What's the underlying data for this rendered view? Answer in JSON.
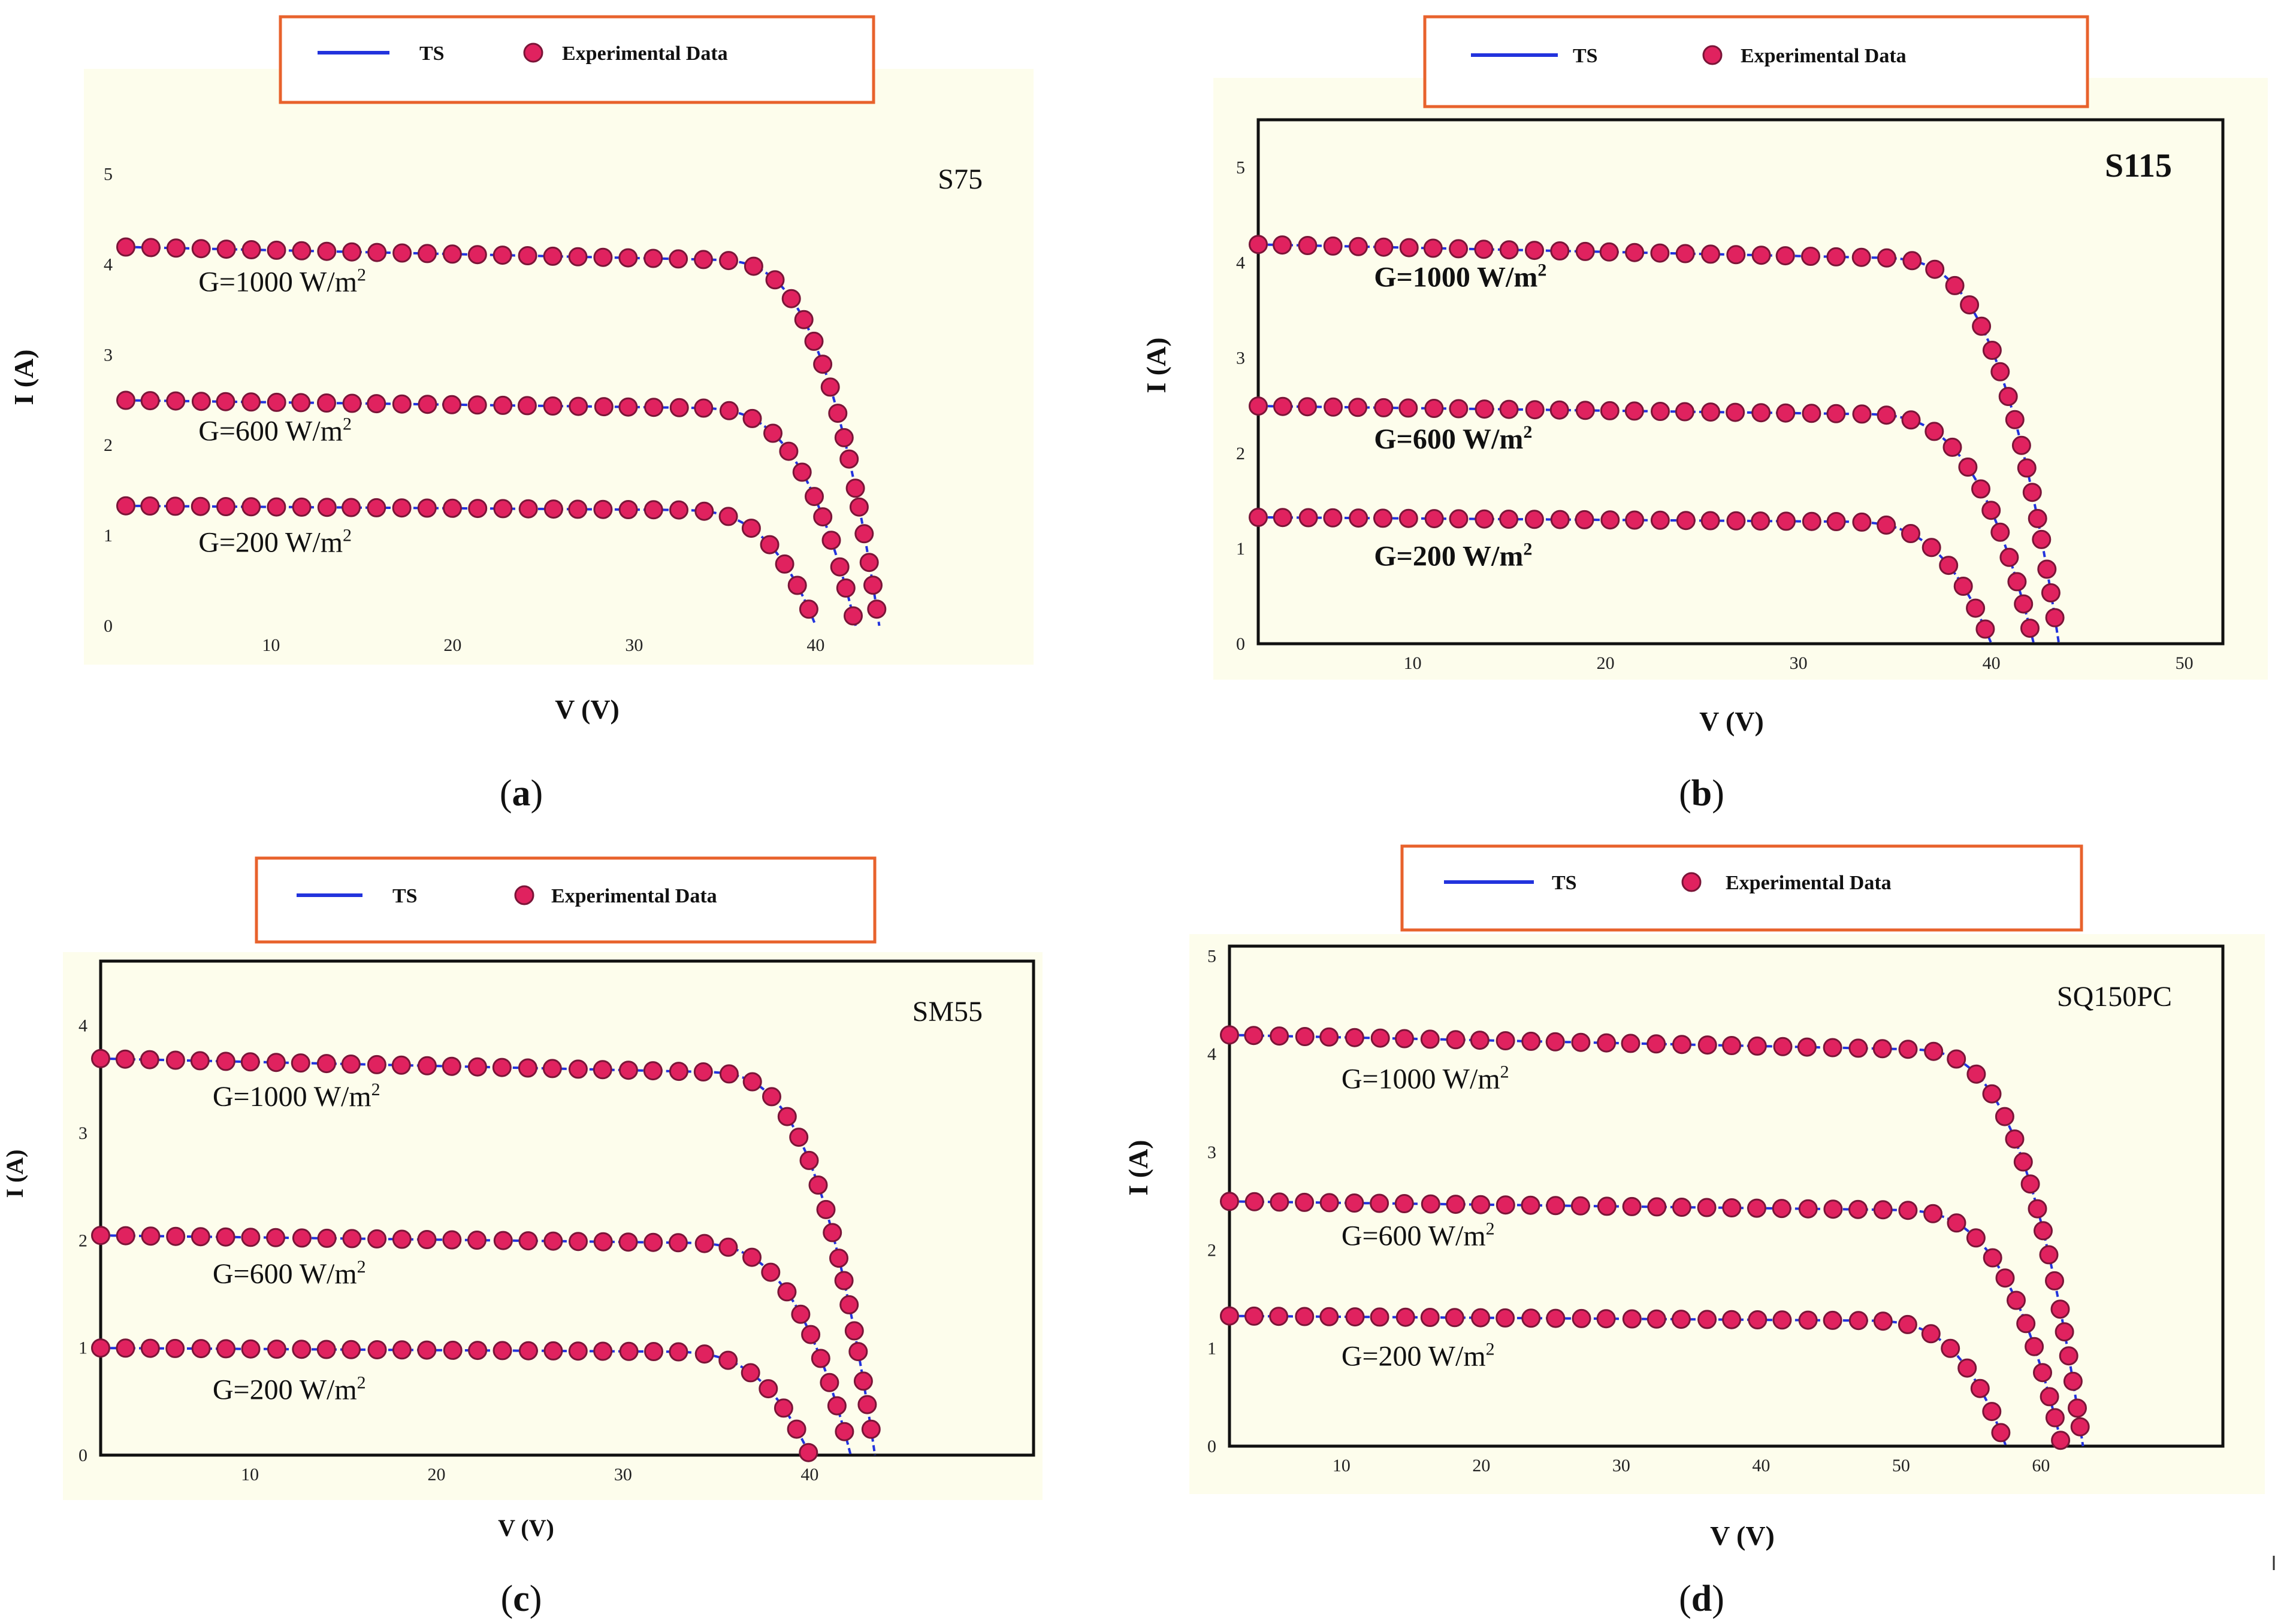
{
  "legend": {
    "line_label": "TS",
    "marker_label": "Experimental Data"
  },
  "colors": {
    "line": "#2233dd",
    "marker": "#e0225f",
    "marker_edge": "#7a1538",
    "panel_bg": "#fdfdec",
    "legend_border": "#e8622c",
    "axis": "#111111"
  },
  "chart_data": [
    {
      "type": "line",
      "panel": "(a)",
      "model": "S75",
      "xlabel": "V (V)",
      "ylabel": "I (A)",
      "xlim": [
        2,
        52
      ],
      "ylim": [
        0,
        5.5
      ],
      "xticks": [
        10,
        20,
        30,
        40
      ],
      "yticks": [
        0,
        1,
        2,
        3,
        4,
        5
      ],
      "series": [
        {
          "name": "G=1000 W/m2",
          "isc": 4.2,
          "voc": 43.5,
          "knee": 34,
          "a": 2.2,
          "b": 2,
          "label_y": 3.7,
          "label_x": 6
        },
        {
          "name": "G=600 W/m2",
          "isc": 2.5,
          "voc": 42.2,
          "knee": 33,
          "a": 2.3,
          "b": 2,
          "label_y": 2.05,
          "label_x": 6
        },
        {
          "name": "G=200 W/m2",
          "isc": 1.33,
          "voc": 40.0,
          "knee": 32,
          "a": 2.4,
          "b": 2,
          "label_y": 0.82,
          "label_x": 6
        }
      ]
    },
    {
      "type": "line",
      "panel": "(b)",
      "model": "S115",
      "xlabel": "V (V)",
      "ylabel": "I (A)",
      "xlim": [
        2,
        52
      ],
      "ylim": [
        0,
        5.5
      ],
      "xticks": [
        10,
        20,
        30,
        40,
        50
      ],
      "yticks": [
        0,
        1,
        2,
        3,
        4,
        5
      ],
      "series": [
        {
          "name": "G=1000 W/m2",
          "isc": 4.2,
          "voc": 43.5,
          "knee": 34,
          "a": 2.2,
          "b": 2,
          "label_y": 3.75,
          "label_x": 8
        },
        {
          "name": "G=600 W/m2",
          "isc": 2.5,
          "voc": 42.2,
          "knee": 33,
          "a": 2.3,
          "b": 2,
          "label_y": 2.05,
          "label_x": 8
        },
        {
          "name": "G=200 W/m2",
          "isc": 1.33,
          "voc": 40.0,
          "knee": 32,
          "a": 2.4,
          "b": 2,
          "label_y": 0.82,
          "label_x": 8
        }
      ]
    },
    {
      "type": "line",
      "panel": "(c)",
      "model": "SM55",
      "xlabel": "V (V)",
      "ylabel": "I (A)",
      "xlim": [
        2,
        52
      ],
      "ylim": [
        0,
        4.6
      ],
      "xticks": [
        10,
        20,
        30,
        40
      ],
      "yticks": [
        0,
        1,
        2,
        3,
        4
      ],
      "series": [
        {
          "name": "G=1000 W/m2",
          "isc": 3.7,
          "voc": 43.5,
          "knee": 34,
          "a": 2.2,
          "b": 2,
          "label_y": 3.25,
          "label_x": 8
        },
        {
          "name": "G=600 W/m2",
          "isc": 2.05,
          "voc": 42.2,
          "knee": 33,
          "a": 2.3,
          "b": 2,
          "label_y": 1.6,
          "label_x": 8
        },
        {
          "name": "G=200 W/m2",
          "isc": 1.0,
          "voc": 40.0,
          "knee": 32,
          "a": 2.4,
          "b": 2,
          "label_y": 0.52,
          "label_x": 8
        }
      ]
    },
    {
      "type": "line",
      "panel": "(d)",
      "model": "SQ150PC",
      "xlabel": "V (V)",
      "ylabel": "I (A)",
      "xlim": [
        2,
        73
      ],
      "ylim": [
        0,
        5.1
      ],
      "xticks": [
        10,
        20,
        30,
        40,
        50,
        60
      ],
      "yticks": [
        0,
        1,
        2,
        3,
        4,
        5
      ],
      "series": [
        {
          "name": "G=1000 W/m2",
          "isc": 4.2,
          "voc": 63.0,
          "knee": 50,
          "a": 2.2,
          "b": 2,
          "label_y": 3.65,
          "label_x": 10
        },
        {
          "name": "G=600 W/m2",
          "isc": 2.5,
          "voc": 61.5,
          "knee": 49,
          "a": 2.3,
          "b": 2,
          "label_y": 2.05,
          "label_x": 10
        },
        {
          "name": "G=200 W/m2",
          "isc": 1.33,
          "voc": 57.5,
          "knee": 47,
          "a": 2.4,
          "b": 2,
          "label_y": 0.82,
          "label_x": 10
        }
      ]
    }
  ]
}
